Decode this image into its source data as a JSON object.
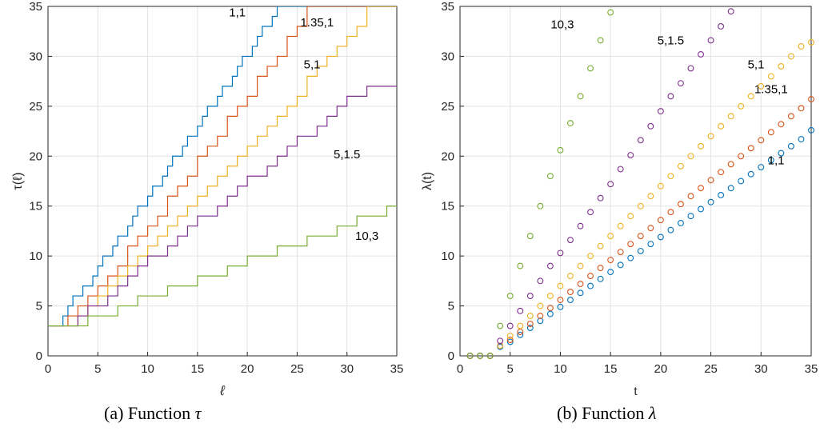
{
  "captions": {
    "a": {
      "prefix": "(a)  Function ",
      "symbol": "τ"
    },
    "b": {
      "prefix": "(b)  Function ",
      "symbol": "λ"
    }
  },
  "colors": {
    "series_1_1": "#0072BD",
    "series_135_1": "#D95319",
    "series_5_1": "#EDB120",
    "series_5_15": "#7E2F8E",
    "series_10_3": "#77AC30",
    "grid": "#e3e3e3",
    "axis": "#262626"
  },
  "chart_data": [
    {
      "type": "line",
      "subtype": "step",
      "title": "",
      "xlabel": "ℓ",
      "ylabel": "τ(ℓ)",
      "xlim": [
        0,
        35
      ],
      "ylim": [
        0,
        35
      ],
      "xticks": [
        0,
        5,
        10,
        15,
        20,
        25,
        30,
        35
      ],
      "yticks": [
        0,
        5,
        10,
        15,
        20,
        25,
        30,
        35
      ],
      "grid": true,
      "series": [
        {
          "name": "1,1",
          "slope": 1.52,
          "offset": 0.0,
          "label_anchor": [
            19,
            34
          ]
        },
        {
          "name": "1.35,1",
          "slope": 1.31,
          "offset": 0.2,
          "label_anchor": [
            27,
            33
          ]
        },
        {
          "name": "5,1",
          "slope": 1.06,
          "offset": 1.6,
          "label_anchor": [
            26.5,
            28.8
          ]
        },
        {
          "name": "5,1.5",
          "slope": 0.75,
          "offset": 2.5,
          "label_anchor": [
            30,
            19.8
          ]
        },
        {
          "name": "10,3",
          "slope": 0.36,
          "offset": 2.8,
          "label_anchor": [
            32,
            11.6
          ]
        }
      ],
      "points": {
        "1,1": {
          "x": [
            0,
            1,
            1.5,
            2,
            2.5,
            3,
            3.5,
            4,
            4.5,
            5,
            5.5,
            6,
            6.5,
            7,
            7.5,
            8,
            8.5,
            9,
            9.5,
            10,
            10.5,
            11,
            11.5,
            12,
            12.5,
            13,
            13.5,
            14,
            14.5,
            15,
            15.5,
            16,
            16.5,
            17,
            17.5,
            18,
            18.5,
            19,
            19.5,
            20,
            20.5,
            21,
            21.5,
            22,
            22.5,
            23,
            23.5
          ],
          "y": [
            3,
            3,
            4,
            5,
            6,
            6,
            7,
            7,
            8,
            9,
            10,
            10,
            11,
            12,
            12,
            13,
            14,
            15,
            15,
            16,
            17,
            17,
            18,
            19,
            20,
            20,
            21,
            22,
            22,
            23,
            24,
            25,
            25,
            26,
            27,
            27,
            28,
            29,
            30,
            30,
            31,
            32,
            33,
            33,
            34,
            35,
            35
          ]
        },
        "1.35,1": {
          "x": [
            0,
            1,
            2,
            3,
            4,
            5,
            6,
            7,
            8,
            9,
            10,
            11,
            12,
            13,
            14,
            15,
            16,
            17,
            18,
            19,
            20,
            21,
            22,
            23,
            24,
            25,
            26,
            27
          ],
          "y": [
            3,
            3,
            4,
            5,
            6,
            7,
            8,
            9,
            11,
            12,
            13,
            14,
            16,
            17,
            18,
            20,
            21,
            22,
            24,
            25,
            26,
            28,
            29,
            30,
            32,
            33,
            35,
            35
          ]
        },
        "5,1": {
          "x": [
            0,
            1,
            2,
            3,
            4,
            5,
            6,
            7,
            8,
            9,
            10,
            11,
            12,
            13,
            14,
            15,
            16,
            17,
            18,
            19,
            20,
            21,
            22,
            23,
            24,
            25,
            26,
            27,
            28,
            29,
            30,
            31,
            32,
            33
          ],
          "y": [
            3,
            3,
            3,
            4,
            5,
            6,
            7,
            8,
            9,
            10,
            11,
            12,
            13,
            14,
            15,
            16,
            17,
            18,
            19,
            20,
            21,
            22,
            23,
            24,
            25,
            26,
            28,
            29,
            30,
            31,
            32,
            33,
            35,
            35
          ]
        },
        "5,1.5": {
          "x": [
            0,
            1,
            2,
            3,
            4,
            5,
            6,
            7,
            8,
            9,
            10,
            11,
            12,
            13,
            14,
            15,
            16,
            17,
            18,
            19,
            20,
            21,
            22,
            23,
            24,
            25,
            26,
            27,
            28,
            29,
            30,
            31,
            32,
            33,
            34,
            35
          ],
          "y": [
            3,
            3,
            3,
            4,
            5,
            5,
            6,
            7,
            8,
            9,
            10,
            10,
            11,
            12,
            13,
            14,
            14,
            15,
            16,
            17,
            18,
            18,
            19,
            20,
            21,
            22,
            22,
            23,
            24,
            25,
            26,
            26,
            27,
            27,
            27,
            27
          ]
        },
        "10,3": {
          "x": [
            0,
            1,
            2,
            3,
            4,
            5,
            6,
            7,
            8,
            9,
            10,
            11,
            12,
            13,
            14,
            15,
            16,
            17,
            18,
            19,
            20,
            21,
            22,
            23,
            24,
            25,
            26,
            27,
            28,
            29,
            30,
            31,
            32,
            33,
            34,
            35
          ],
          "y": [
            3,
            3,
            3,
            3,
            4,
            4,
            4,
            5,
            5,
            6,
            6,
            6,
            7,
            7,
            7,
            8,
            8,
            8,
            9,
            9,
            10,
            10,
            10,
            11,
            11,
            11,
            12,
            12,
            12,
            13,
            13,
            14,
            14,
            14,
            15,
            15
          ]
        }
      }
    },
    {
      "type": "scatter",
      "title": "",
      "xlabel": "t",
      "ylabel": "λ(t)",
      "xlim": [
        0,
        35
      ],
      "ylim": [
        0,
        35
      ],
      "xticks": [
        0,
        5,
        10,
        15,
        20,
        25,
        30,
        35
      ],
      "yticks": [
        0,
        5,
        10,
        15,
        20,
        25,
        30,
        35
      ],
      "grid": true,
      "series": [
        {
          "name": "1,1",
          "label_anchor": [
            31.5,
            19.2
          ],
          "x": [
            1,
            2,
            3,
            4,
            5,
            6,
            7,
            8,
            9,
            10,
            11,
            12,
            13,
            14,
            15,
            16,
            17,
            18,
            19,
            20,
            21,
            22,
            23,
            24,
            25,
            26,
            27,
            28,
            29,
            30,
            31,
            32,
            33,
            34,
            35
          ],
          "y": [
            0,
            0,
            0,
            0.9,
            1.4,
            2.1,
            2.8,
            3.5,
            4.2,
            4.9,
            5.6,
            6.3,
            7.0,
            7.7,
            8.4,
            9.1,
            9.8,
            10.5,
            11.2,
            11.9,
            12.6,
            13.3,
            14.0,
            14.7,
            15.4,
            16.1,
            16.8,
            17.5,
            18.2,
            18.9,
            19.6,
            20.3,
            21.0,
            21.7,
            22.6
          ]
        },
        {
          "name": "1.35,1",
          "label_anchor": [
            31,
            26.3
          ],
          "x": [
            1,
            2,
            3,
            4,
            5,
            6,
            7,
            8,
            9,
            10,
            11,
            12,
            13,
            14,
            15,
            16,
            17,
            18,
            19,
            20,
            21,
            22,
            23,
            24,
            25,
            26,
            27,
            28,
            29,
            30,
            31,
            32,
            33,
            34,
            35
          ],
          "y": [
            0,
            0,
            0,
            1.0,
            1.6,
            2.4,
            3.2,
            4.0,
            4.8,
            5.6,
            6.4,
            7.2,
            8.0,
            8.8,
            9.6,
            10.4,
            11.2,
            12.0,
            12.8,
            13.6,
            14.4,
            15.2,
            16.0,
            16.8,
            17.6,
            18.4,
            19.2,
            20.0,
            20.8,
            21.6,
            22.4,
            23.2,
            24.0,
            24.8,
            25.7
          ]
        },
        {
          "name": "5,1",
          "label_anchor": [
            29.5,
            28.8
          ],
          "x": [
            1,
            2,
            3,
            4,
            5,
            6,
            7,
            8,
            9,
            10,
            11,
            12,
            13,
            14,
            15,
            16,
            17,
            18,
            19,
            20,
            21,
            22,
            23,
            24,
            25,
            26,
            27,
            28,
            29,
            30,
            31,
            32,
            33,
            34,
            35
          ],
          "y": [
            0,
            0,
            0,
            1.0,
            2.0,
            3.0,
            4.0,
            5.0,
            6.0,
            7.0,
            8.0,
            9.0,
            10.0,
            11.0,
            12.0,
            13.0,
            14.0,
            15.0,
            16.0,
            17.0,
            18.0,
            19.0,
            20.0,
            21.0,
            22.0,
            23.0,
            24.0,
            25.0,
            26.0,
            27.0,
            28.0,
            29.0,
            30.0,
            31.0,
            31.4
          ]
        },
        {
          "name": "5,1.5",
          "label_anchor": [
            21,
            31.2
          ],
          "x": [
            1,
            2,
            3,
            4,
            5,
            6,
            7,
            8,
            9,
            10,
            11,
            12,
            13,
            14,
            15,
            16,
            17,
            18,
            19,
            20,
            21,
            22,
            23,
            24,
            25,
            26,
            27
          ],
          "y": [
            0,
            0,
            0,
            1.5,
            3.0,
            4.5,
            6.0,
            7.5,
            9.0,
            10.3,
            11.6,
            13.0,
            14.4,
            15.8,
            17.2,
            18.7,
            20.1,
            21.6,
            23.0,
            24.5,
            26.0,
            27.3,
            28.8,
            30.2,
            31.6,
            33.0,
            34.5
          ]
        },
        {
          "name": "10,3",
          "label_anchor": [
            10.2,
            32.8
          ],
          "x": [
            1,
            2,
            3,
            4,
            5,
            6,
            7,
            8,
            9,
            10,
            11,
            12,
            13,
            14,
            15
          ],
          "y": [
            0,
            0,
            0,
            3.0,
            6.0,
            9.0,
            12.0,
            15.0,
            18.0,
            20.6,
            23.3,
            26.0,
            28.8,
            31.6,
            34.4
          ]
        }
      ]
    }
  ]
}
